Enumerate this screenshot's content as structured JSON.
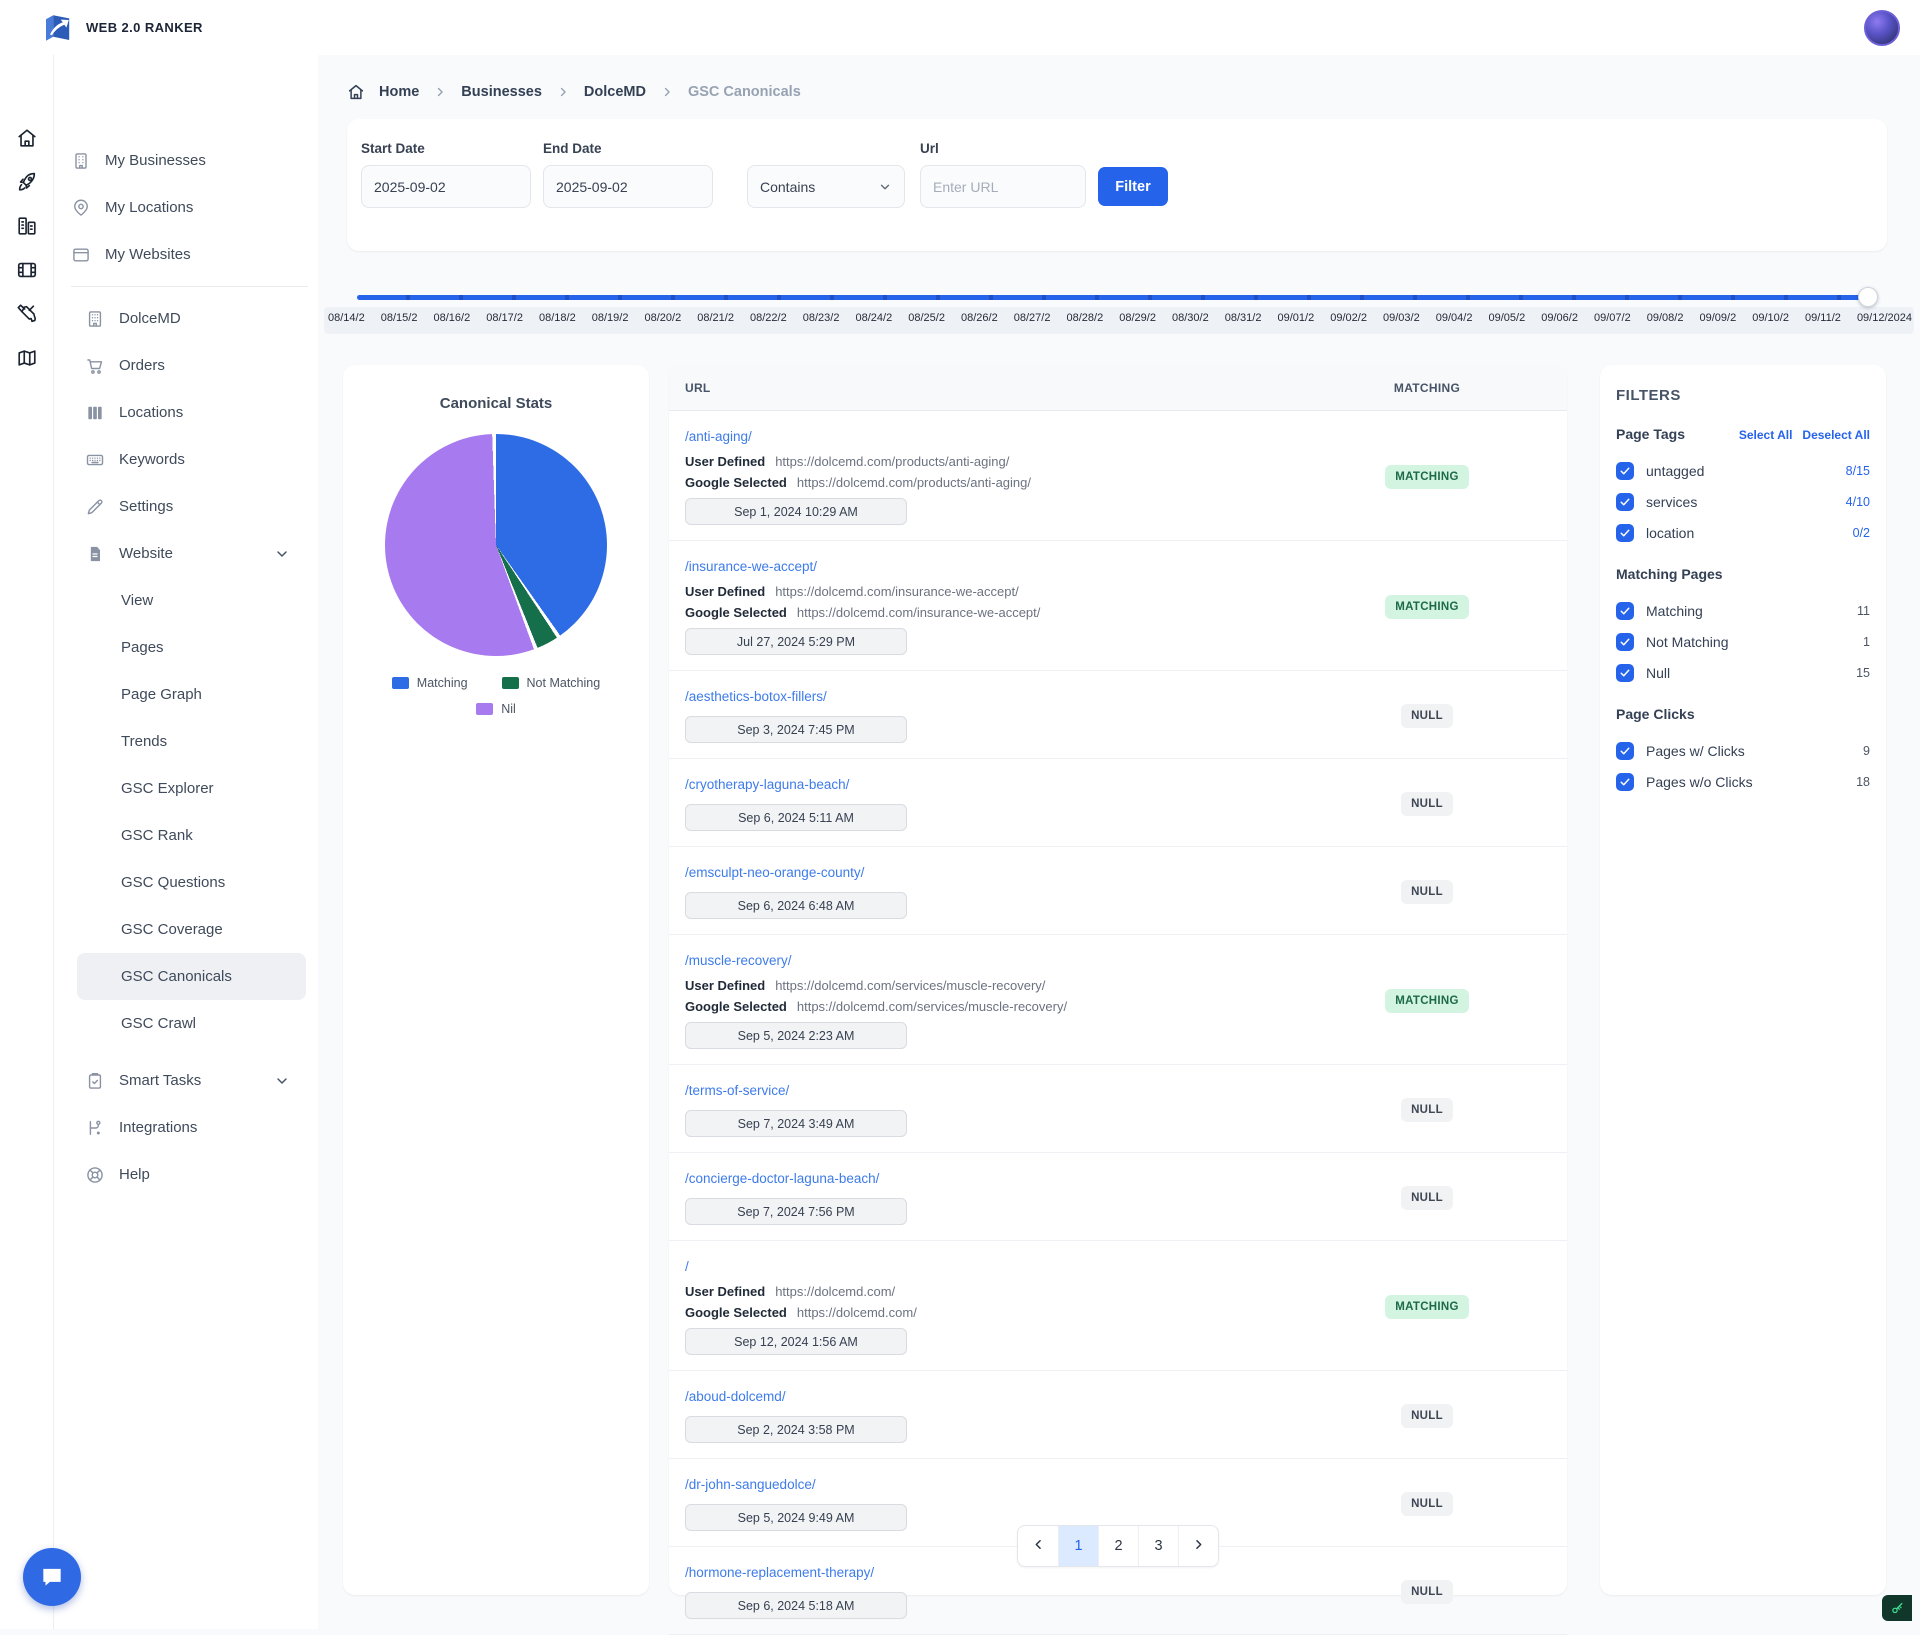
{
  "brand": {
    "name": "WEB 2.0 RANKER"
  },
  "sidebar": {
    "rail": [
      {
        "icon": "home-icon"
      },
      {
        "icon": "rocket-icon"
      },
      {
        "icon": "buildings-icon"
      },
      {
        "icon": "film-icon"
      },
      {
        "icon": "tools-icon"
      },
      {
        "icon": "map-icon"
      }
    ],
    "top_items": [
      {
        "label": "My Businesses",
        "icon": "business-icon"
      },
      {
        "label": "My Locations",
        "icon": "location-pin-icon"
      },
      {
        "label": "My Websites",
        "icon": "browser-icon"
      }
    ],
    "business_items": [
      {
        "label": "DolceMD",
        "icon": "building-icon"
      },
      {
        "label": "Orders",
        "icon": "cart-icon"
      },
      {
        "label": "Locations",
        "icon": "columns-icon"
      },
      {
        "label": "Keywords",
        "icon": "keyboard-icon"
      },
      {
        "label": "Settings",
        "icon": "pencil-icon"
      },
      {
        "label": "Website",
        "icon": "document-icon",
        "chevron": true
      }
    ],
    "website_children": [
      {
        "label": "View"
      },
      {
        "label": "Pages"
      },
      {
        "label": "Page Graph"
      },
      {
        "label": "Trends"
      },
      {
        "label": "GSC Explorer"
      },
      {
        "label": "GSC Rank"
      },
      {
        "label": "GSC Questions"
      },
      {
        "label": "GSC Coverage"
      },
      {
        "label": "GSC Canonicals",
        "active": true
      },
      {
        "label": "GSC Crawl"
      }
    ],
    "bottom_items": [
      {
        "label": "Smart Tasks",
        "icon": "clipboard-icon",
        "chevron": true
      },
      {
        "label": "Integrations",
        "icon": "integration-icon"
      },
      {
        "label": "Help",
        "icon": "help-icon"
      }
    ]
  },
  "breadcrumb": {
    "items": [
      {
        "label": "Home"
      },
      {
        "label": "Businesses"
      },
      {
        "label": "DolceMD"
      },
      {
        "label": "GSC Canonicals",
        "current": true
      }
    ]
  },
  "filter_bar": {
    "start_date": {
      "label": "Start Date",
      "value": "2025-09-02"
    },
    "end_date": {
      "label": "End Date",
      "value": "2025-09-02"
    },
    "match_select": {
      "value": "Contains"
    },
    "url": {
      "label": "Url",
      "placeholder": "Enter URL"
    },
    "filter_button": "Filter"
  },
  "timeline": {
    "dates": [
      "08/14/2",
      "08/15/2",
      "08/16/2",
      "08/17/2",
      "08/18/2",
      "08/19/2",
      "08/20/2",
      "08/21/2",
      "08/22/2",
      "08/23/2",
      "08/24/2",
      "08/25/2",
      "08/26/2",
      "08/27/2",
      "08/28/2",
      "08/29/2",
      "08/30/2",
      "08/31/2",
      "09/01/2",
      "09/02/2",
      "09/03/2",
      "09/04/2",
      "09/05/2",
      "09/06/2",
      "09/07/2",
      "09/08/2",
      "09/09/2",
      "09/10/2",
      "09/11/2",
      "09/12/2024"
    ]
  },
  "chart_data": {
    "type": "pie",
    "title": "Canonical Stats",
    "slices": [
      {
        "label": "Matching",
        "value": 11,
        "color": "#2d6ce5"
      },
      {
        "label": "Not Matching",
        "value": 1,
        "color": "#156f4b"
      },
      {
        "label": "Nil",
        "value": 15,
        "color": "#a77af0"
      }
    ],
    "legend_position": "bottom"
  },
  "table": {
    "columns": [
      "URL",
      "MATCHING"
    ],
    "labels": {
      "user_defined": "User Defined",
      "google_selected": "Google Selected"
    },
    "rows": [
      {
        "url": "/anti-aging/",
        "user_defined": "https://dolcemd.com/products/anti-aging/",
        "google_selected": "https://dolcemd.com/products/anti-aging/",
        "date": "Sep 1, 2024 10:29 AM",
        "status": "MATCHING"
      },
      {
        "url": "/insurance-we-accept/",
        "user_defined": "https://dolcemd.com/insurance-we-accept/",
        "google_selected": "https://dolcemd.com/insurance-we-accept/",
        "date": "Jul 27, 2024 5:29 PM",
        "status": "MATCHING"
      },
      {
        "url": "/aesthetics-botox-fillers/",
        "date": "Sep 3, 2024 7:45 PM",
        "status": "NULL"
      },
      {
        "url": "/cryotherapy-laguna-beach/",
        "date": "Sep 6, 2024 5:11 AM",
        "status": "NULL"
      },
      {
        "url": "/emsculpt-neo-orange-county/",
        "date": "Sep 6, 2024 6:48 AM",
        "status": "NULL"
      },
      {
        "url": "/muscle-recovery/",
        "user_defined": "https://dolcemd.com/services/muscle-recovery/",
        "google_selected": "https://dolcemd.com/services/muscle-recovery/",
        "date": "Sep 5, 2024 2:23 AM",
        "status": "MATCHING"
      },
      {
        "url": "/terms-of-service/",
        "date": "Sep 7, 2024 3:49 AM",
        "status": "NULL"
      },
      {
        "url": "/concierge-doctor-laguna-beach/",
        "date": "Sep 7, 2024 7:56 PM",
        "status": "NULL"
      },
      {
        "url": "/",
        "user_defined": "https://dolcemd.com/",
        "google_selected": "https://dolcemd.com/",
        "date": "Sep 12, 2024 1:56 AM",
        "status": "MATCHING"
      },
      {
        "url": "/aboud-dolcemd/",
        "date": "Sep 2, 2024 3:58 PM",
        "status": "NULL"
      },
      {
        "url": "/dr-john-sanguedolce/",
        "date": "Sep 5, 2024 9:49 AM",
        "status": "NULL"
      },
      {
        "url": "/hormone-replacement-therapy/",
        "date": "Sep 6, 2024 5:18 AM",
        "status": "NULL"
      }
    ]
  },
  "filters_panel": {
    "title": "FILTERS",
    "groups": [
      {
        "title": "Page Tags",
        "links": [
          "Select All",
          "Deselect All"
        ],
        "items": [
          {
            "label": "untagged",
            "count": "8/15",
            "checked": true,
            "count_style": "link"
          },
          {
            "label": "services",
            "count": "4/10",
            "checked": true,
            "count_style": "link"
          },
          {
            "label": "location",
            "count": "0/2",
            "checked": true,
            "count_style": "link"
          }
        ]
      },
      {
        "title": "Matching Pages",
        "items": [
          {
            "label": "Matching",
            "count": "11",
            "checked": true
          },
          {
            "label": "Not Matching",
            "count": "1",
            "checked": true
          },
          {
            "label": "Null",
            "count": "15",
            "checked": true
          }
        ]
      },
      {
        "title": "Page Clicks",
        "items": [
          {
            "label": "Pages w/ Clicks",
            "count": "9",
            "checked": true
          },
          {
            "label": "Pages w/o Clicks",
            "count": "18",
            "checked": true
          }
        ]
      }
    ]
  },
  "pagination": {
    "pages": [
      "1",
      "2",
      "3"
    ],
    "active": "1"
  },
  "colors": {
    "accent": "#2563eb",
    "matching_badge_bg": "#d4f4e2",
    "matching_badge_text": "#1d6a47",
    "null_badge_bg": "#f1f2f4",
    "null_badge_text": "#3f4754",
    "pie_matching": "#2d6ce5",
    "pie_not_matching": "#156f4b",
    "pie_nil": "#a77af0"
  }
}
